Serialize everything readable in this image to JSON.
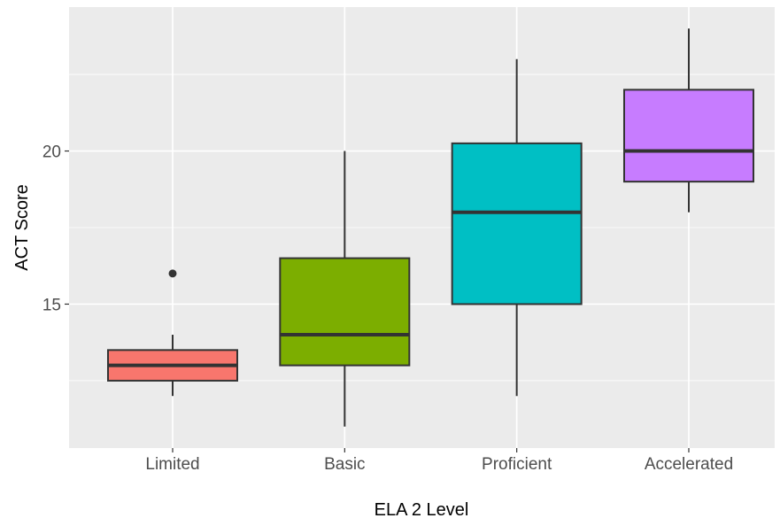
{
  "chart_data": {
    "type": "boxplot",
    "xlabel": "ELA 2 Level",
    "ylabel": "ACT Score",
    "ylim": [
      10.3,
      24.7
    ],
    "y_major_ticks": [
      15,
      20
    ],
    "y_minor_ticks": [
      12.5,
      17.5,
      22.5
    ],
    "grid": true,
    "legend": "none",
    "categories": [
      "Limited",
      "Basic",
      "Proficient",
      "Accelerated"
    ],
    "boxes": [
      {
        "category": "Limited",
        "whisker_low": 12,
        "q1": 12.5,
        "median": 13,
        "q3": 13.5,
        "whisker_high": 14,
        "outliers": [
          16
        ],
        "color": "#F8766D"
      },
      {
        "category": "Basic",
        "whisker_low": 11,
        "q1": 13,
        "median": 14,
        "q3": 16.5,
        "whisker_high": 20,
        "outliers": [],
        "color": "#7CAE00"
      },
      {
        "category": "Proficient",
        "whisker_low": 12,
        "q1": 15,
        "median": 18,
        "q3": 20.25,
        "whisker_high": 23,
        "outliers": [],
        "color": "#00BFC4"
      },
      {
        "category": "Accelerated",
        "whisker_low": 18,
        "q1": 19,
        "median": 20,
        "q3": 22,
        "whisker_high": 24,
        "outliers": [],
        "color": "#C77CFF"
      }
    ]
  },
  "style": {
    "panel_background": "#EBEBEB",
    "grid_color": "#FFFFFF",
    "line_color": "#333333"
  }
}
